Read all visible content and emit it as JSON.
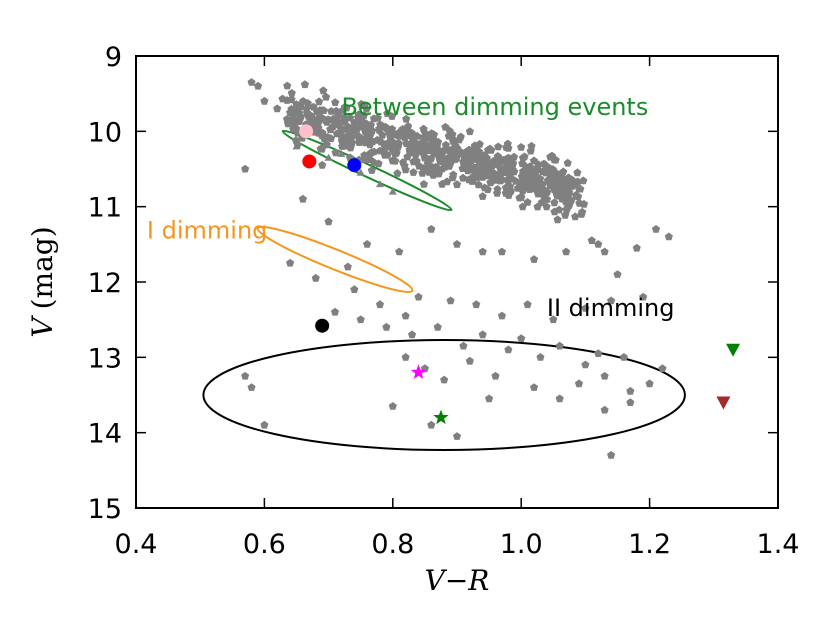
{
  "chart_data": {
    "type": "scatter",
    "xlabel": "V−R",
    "ylabel_var": "V",
    "ylabel_unit": "(mag)",
    "xlim": [
      0.4,
      1.4
    ],
    "ylim": [
      15,
      9
    ],
    "y_inverted": true,
    "x_ticks": [
      "0.4",
      "0.6",
      "0.8",
      "1.0",
      "1.2",
      "1.4"
    ],
    "y_ticks": [
      "9",
      "10",
      "11",
      "12",
      "13",
      "14",
      "15"
    ],
    "grid": false,
    "background_points": {
      "color": "#808080",
      "cluster": {
        "x_range": [
          0.62,
          1.1
        ],
        "y_range": [
          9.5,
          11.1
        ],
        "trend": "V increases with V-R"
      },
      "scattered": [
        [
          0.58,
          9.35
        ],
        [
          0.59,
          9.4
        ],
        [
          0.6,
          9.6
        ],
        [
          0.62,
          9.7
        ],
        [
          0.64,
          9.75
        ],
        [
          0.69,
          10.45
        ],
        [
          0.57,
          10.5
        ],
        [
          0.66,
          10.9
        ],
        [
          0.7,
          11.2
        ],
        [
          0.76,
          11.5
        ],
        [
          0.81,
          11.6
        ],
        [
          0.86,
          11.3
        ],
        [
          0.9,
          11.5
        ],
        [
          0.94,
          11.6
        ],
        [
          0.97,
          11.6
        ],
        [
          1.02,
          11.7
        ],
        [
          1.07,
          11.6
        ],
        [
          1.11,
          11.45
        ],
        [
          1.12,
          11.5
        ],
        [
          1.13,
          11.6
        ],
        [
          1.15,
          11.9
        ],
        [
          1.18,
          11.55
        ],
        [
          1.21,
          11.3
        ],
        [
          1.23,
          11.4
        ],
        [
          0.64,
          11.75
        ],
        [
          0.68,
          11.95
        ],
        [
          0.73,
          11.8
        ],
        [
          0.74,
          12.1
        ],
        [
          0.78,
          12.3
        ],
        [
          0.82,
          12.45
        ],
        [
          0.84,
          12.2
        ],
        [
          0.89,
          12.25
        ],
        [
          0.93,
          12.3
        ],
        [
          0.97,
          12.45
        ],
        [
          1.01,
          12.3
        ],
        [
          1.05,
          12.5
        ],
        [
          1.1,
          12.35
        ],
        [
          1.14,
          12.25
        ],
        [
          1.19,
          12.2
        ],
        [
          0.71,
          12.4
        ],
        [
          0.75,
          12.5
        ],
        [
          0.79,
          12.6
        ],
        [
          0.83,
          12.7
        ],
        [
          0.87,
          12.6
        ],
        [
          0.91,
          12.85
        ],
        [
          0.94,
          12.7
        ],
        [
          0.98,
          12.9
        ],
        [
          1.0,
          12.75
        ],
        [
          1.03,
          13.0
        ],
        [
          1.06,
          12.85
        ],
        [
          1.1,
          13.1
        ],
        [
          1.13,
          13.25
        ],
        [
          1.16,
          13.0
        ],
        [
          1.2,
          13.35
        ],
        [
          1.22,
          13.15
        ],
        [
          0.82,
          13.0
        ],
        [
          0.85,
          13.15
        ],
        [
          0.88,
          13.3
        ],
        [
          0.92,
          13.05
        ],
        [
          0.96,
          13.25
        ],
        [
          1.02,
          13.4
        ],
        [
          1.06,
          13.55
        ],
        [
          1.09,
          13.35
        ],
        [
          1.13,
          13.7
        ],
        [
          1.17,
          13.6
        ],
        [
          0.57,
          13.25
        ],
        [
          0.58,
          13.4
        ],
        [
          0.6,
          13.9
        ],
        [
          0.8,
          13.65
        ],
        [
          0.86,
          13.9
        ],
        [
          0.9,
          14.05
        ],
        [
          1.14,
          14.3
        ],
        [
          1.17,
          13.45
        ],
        [
          1.12,
          12.95
        ],
        [
          0.95,
          13.55
        ]
      ]
    },
    "gray_triangles": [
      [
        0.65,
        10.2
      ],
      [
        0.7,
        10.35
      ],
      [
        0.75,
        10.55
      ],
      [
        0.78,
        10.7
      ],
      [
        0.8,
        10.8
      ],
      [
        0.72,
        10.3
      ]
    ],
    "special_points": [
      {
        "marker": "circle",
        "color": "#ffc0cb",
        "x": 0.665,
        "y": 10.0
      },
      {
        "marker": "circle",
        "color": "#ff0000",
        "x": 0.67,
        "y": 10.4
      },
      {
        "marker": "circle",
        "color": "#0000ff",
        "x": 0.74,
        "y": 10.45
      },
      {
        "marker": "circle",
        "color": "#000000",
        "x": 0.69,
        "y": 12.58
      },
      {
        "marker": "star",
        "color": "#ff00ff",
        "x": 0.84,
        "y": 13.2
      },
      {
        "marker": "star",
        "color": "#008000",
        "x": 0.875,
        "y": 13.8
      },
      {
        "marker": "triangle-down",
        "color": "#008000",
        "x": 1.33,
        "y": 12.9
      },
      {
        "marker": "triangle-down",
        "color": "#a52a2a",
        "x": 1.315,
        "y": 13.6
      }
    ],
    "ellipses": [
      {
        "label": "Between dimming events",
        "color": "#1a8c2a",
        "cx": 0.76,
        "cy": 10.52,
        "rx": 0.145,
        "ry": 0.08,
        "rot_deg": 25
      },
      {
        "label": "I dimming",
        "color": "#f5961e",
        "cx": 0.71,
        "cy": 11.7,
        "rx": 0.13,
        "ry": 0.13,
        "rot_deg": 22
      },
      {
        "label": "II dimming",
        "color": "#000000",
        "cx": 0.88,
        "cy": 13.5,
        "rx": 0.375,
        "ry": 0.73,
        "rot_deg": 0
      }
    ]
  }
}
